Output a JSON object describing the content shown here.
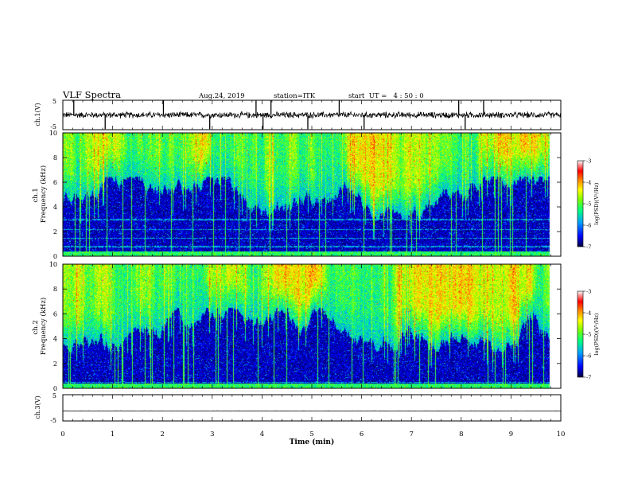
{
  "header": {
    "title": "VLF Spectra",
    "date": "Aug.24, 2019",
    "station": "station=ITK",
    "start": "start  UT =   4 : 50 : 0"
  },
  "colors": {
    "spectrogram_scale": [
      "#00003c",
      "#0000ff",
      "#00a0ff",
      "#00ff80",
      "#80ff00",
      "#ffff00",
      "#ff8000",
      "#ff0000",
      "#ff9090",
      "#ffffff"
    ],
    "trace": "#000000"
  },
  "chart_data": [
    {
      "type": "line",
      "name": "ch1-waveform",
      "ylabel": "ch.1(V)",
      "ylim": [
        -5,
        5
      ],
      "yticks": [
        "5",
        "-5"
      ],
      "baseline": 0,
      "noise_amplitude": 0.8,
      "spikes_min": [
        0.22,
        0.85,
        2.02,
        2.95,
        3.88,
        4.02,
        4.18,
        4.92,
        5.55,
        6.05,
        7.95,
        8.08,
        8.45
      ]
    },
    {
      "type": "heatmap",
      "name": "ch1-spectrogram",
      "ylabel": "ch.1  Frequency (kHz)",
      "xlim": [
        0,
        10
      ],
      "ylim": [
        0,
        10
      ],
      "yticks": [
        "0",
        "2",
        "4",
        "6",
        "8",
        "10"
      ],
      "colorbar": {
        "label": "log(PSD)(V²/Hz)",
        "range": [
          -7,
          -3
        ],
        "ticks": [
          "-3",
          "-4",
          "-5",
          "-6",
          "-7"
        ]
      }
    },
    {
      "type": "heatmap",
      "name": "ch2-spectrogram",
      "ylabel": "ch.2  Frequency (kHz)",
      "xlim": [
        0,
        10
      ],
      "ylim": [
        0,
        10
      ],
      "yticks": [
        "0",
        "2",
        "4",
        "6",
        "8",
        "10"
      ],
      "colorbar": {
        "label": "log(PSD)(V²/Hz)",
        "range": [
          -7,
          -3
        ],
        "ticks": [
          "-3",
          "-4",
          "-5",
          "-6",
          "-7"
        ]
      }
    },
    {
      "type": "line",
      "name": "ch3-waveform",
      "ylabel": "ch.3(V)",
      "ylim": [
        -5,
        5
      ],
      "yticks": [
        "5",
        "-5"
      ],
      "baseline": -1.2,
      "noise_amplitude": 0.05,
      "xlabel": "Time (min)",
      "xticks": [
        "0",
        "1",
        "2",
        "3",
        "4",
        "5",
        "6",
        "7",
        "8",
        "9",
        "10"
      ]
    }
  ]
}
